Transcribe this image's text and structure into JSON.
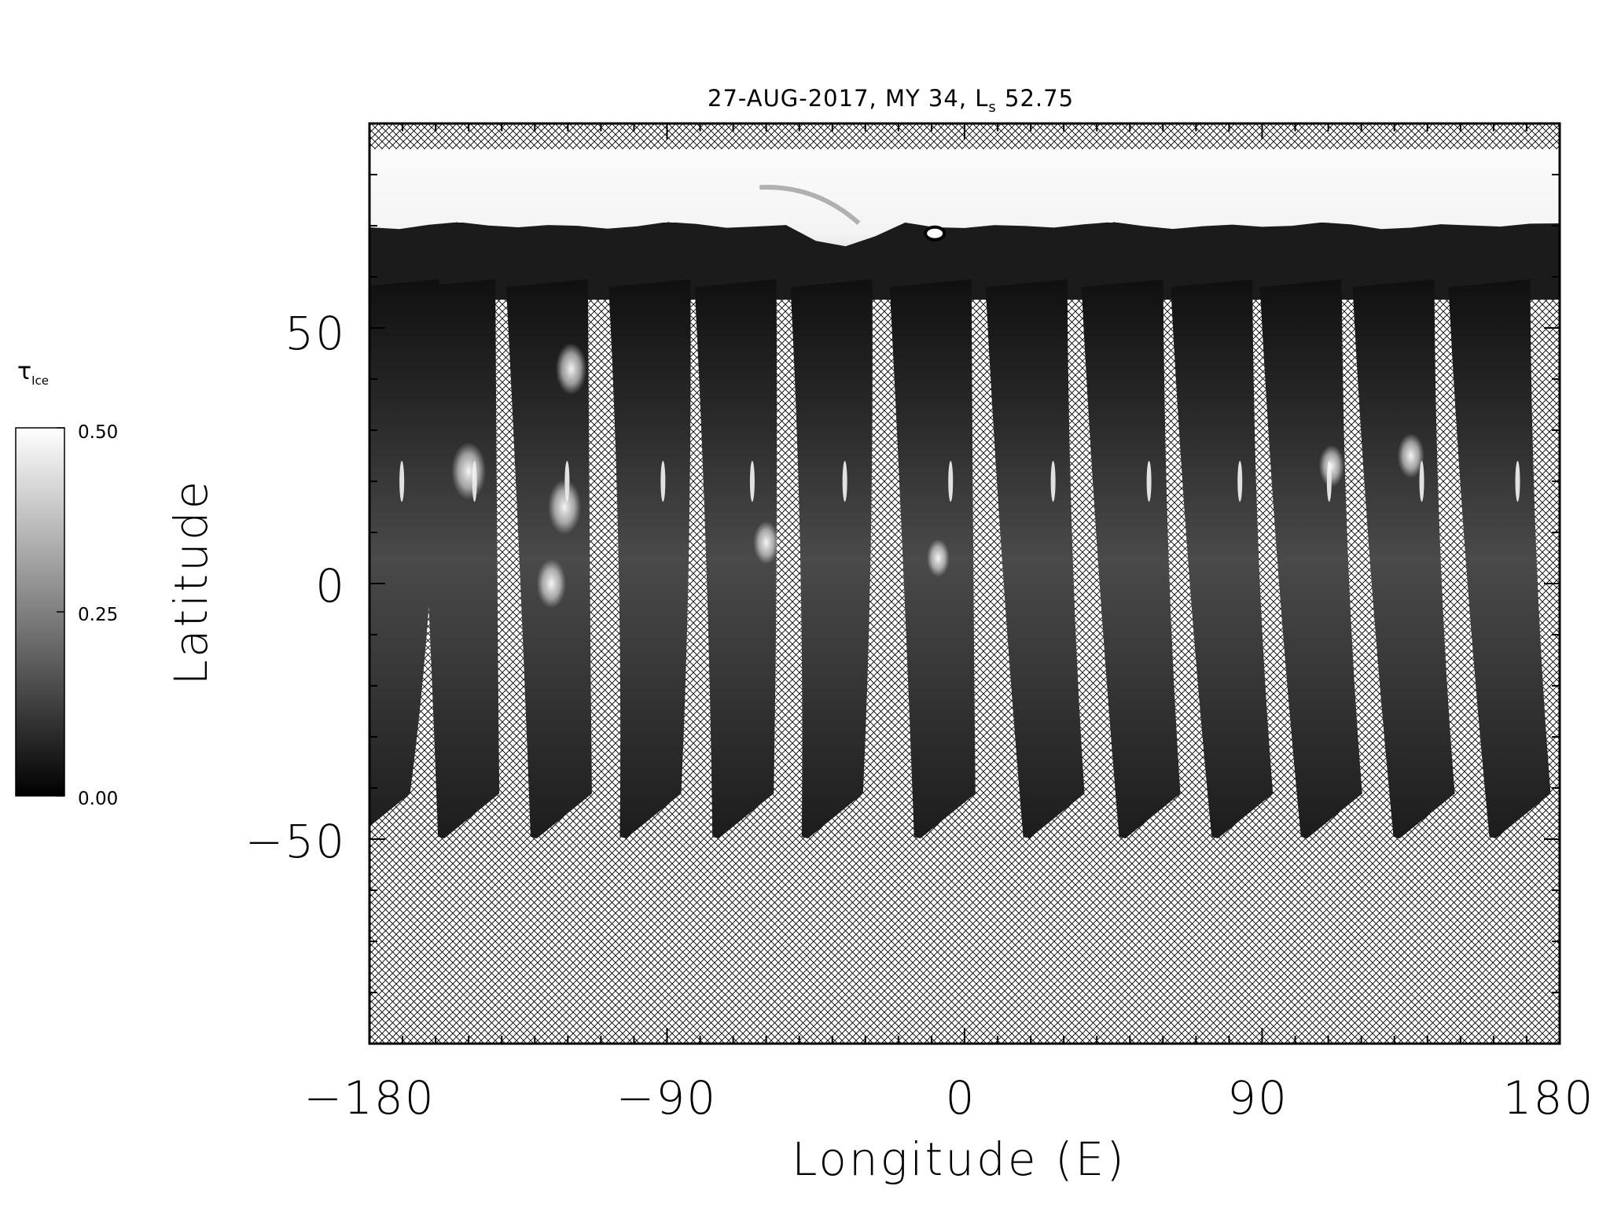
{
  "figure": {
    "title_main": "27-AUG-2017, MY 34,  L",
    "title_sub": "s",
    "title_value": " 52.75",
    "xlabel": "Longitude (E)",
    "ylabel": "Latitude"
  },
  "colorbar": {
    "symbol": "τ",
    "symbol_sub": "Ice",
    "ticks": [
      "0.50",
      "0.25",
      "0.00"
    ],
    "values": [
      0.5,
      0.25,
      0.0
    ],
    "colors": [
      "#ffffff",
      "#000000"
    ]
  },
  "chart_data": {
    "type": "heatmap",
    "title": "27-AUG-2017, MY 34,  Ls 52.75",
    "xlabel": "Longitude (E)",
    "ylabel": "Latitude",
    "xlim": [
      -180,
      180
    ],
    "ylim": [
      -90,
      90
    ],
    "x_ticks": [
      -180,
      -90,
      0,
      90,
      180
    ],
    "x_tick_labels": [
      "−180",
      "−90",
      "0",
      "90",
      "180"
    ],
    "y_ticks": [
      50,
      0,
      -50
    ],
    "y_tick_labels": [
      "50",
      "0",
      "−50"
    ],
    "colorbar_range": [
      0.0,
      0.5
    ],
    "no_data_pattern": "crosshatch",
    "polar_cap": {
      "lat_min": 70,
      "lat_max": 85,
      "value": 0.5
    },
    "swaths": [
      {
        "lon_top": -172,
        "lon_bottom": -177
      },
      {
        "lon_top": -155,
        "lon_bottom": -150
      },
      {
        "lon_top": -127,
        "lon_bottom": -122
      },
      {
        "lon_top": -96,
        "lon_bottom": -95
      },
      {
        "lon_top": -70,
        "lon_bottom": -67
      },
      {
        "lon_top": -41,
        "lon_bottom": -40
      },
      {
        "lon_top": -11,
        "lon_bottom": -6
      },
      {
        "lon_top": 18,
        "lon_bottom": 27
      },
      {
        "lon_top": 47,
        "lon_bottom": 56
      },
      {
        "lon_top": 74,
        "lon_bottom": 84
      },
      {
        "lon_top": 101,
        "lon_bottom": 111
      },
      {
        "lon_top": 129,
        "lon_bottom": 139
      },
      {
        "lon_top": 158,
        "lon_bottom": 168
      }
    ],
    "bright_features": [
      {
        "lon": -150,
        "lat": 22,
        "value": 0.45
      },
      {
        "lon": -121,
        "lat": 15,
        "value": 0.42
      },
      {
        "lon": -119,
        "lat": 42,
        "value": 0.38
      },
      {
        "lon": -125,
        "lat": 0,
        "value": 0.35
      },
      {
        "lon": -60,
        "lat": 8,
        "value": 0.28
      },
      {
        "lon": -8,
        "lat": 5,
        "value": 0.22
      },
      {
        "lon": 135,
        "lat": 25,
        "value": 0.3
      },
      {
        "lon": 111,
        "lat": 23,
        "value": 0.27
      }
    ]
  }
}
